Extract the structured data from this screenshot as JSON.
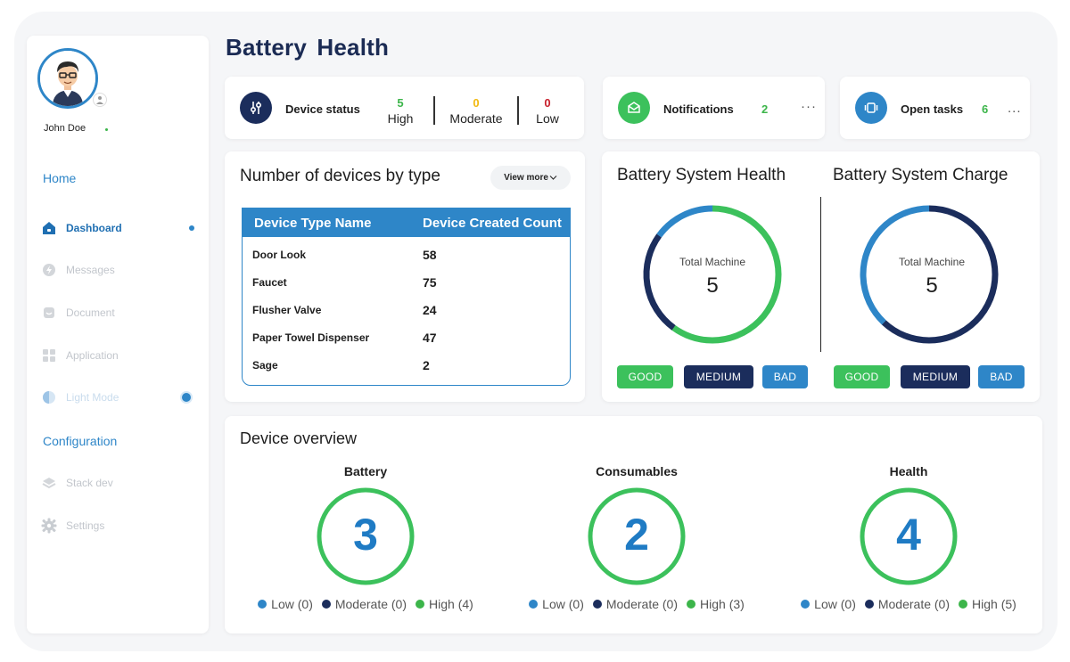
{
  "page": {
    "title": "Battery  Health"
  },
  "user": {
    "name": "John Doe"
  },
  "sidebar": {
    "section_home": "Home",
    "items_top": [
      {
        "label": "Dashboard",
        "icon": "home-icon",
        "active": true
      },
      {
        "label": "Messages",
        "icon": "bolt-icon"
      },
      {
        "label": "Document",
        "icon": "document-icon"
      },
      {
        "label": "Application",
        "icon": "grid-icon"
      },
      {
        "label": "Light Mode",
        "icon": "half-moon-icon"
      }
    ],
    "section_config": "Configuration",
    "items_bottom": [
      {
        "label": "Stack dev",
        "icon": "layers-icon"
      },
      {
        "label": "Settings",
        "icon": "gear-icon"
      }
    ]
  },
  "device_status": {
    "label": "Device status",
    "high": {
      "value": "5",
      "label": "High",
      "color": "#3cb54a"
    },
    "moderate": {
      "value": "0",
      "label": "Moderate",
      "color": "#f2b90f"
    },
    "low": {
      "value": "0",
      "label": "Low",
      "color": "#c8202c"
    }
  },
  "notifications": {
    "label": "Notifications",
    "count": "2",
    "more": "···"
  },
  "open_tasks": {
    "label": "Open tasks",
    "count": "6",
    "more": "..."
  },
  "devices_by_type": {
    "title": "Number of devices by type",
    "view_more": "View more",
    "columns": [
      "Device Type Name",
      "Device Created Count"
    ],
    "rows": [
      {
        "name": "Door Look",
        "count": "58"
      },
      {
        "name": "Faucet",
        "count": "75"
      },
      {
        "name": "Flusher Valve",
        "count": "24"
      },
      {
        "name": "Paper Towel Dispenser",
        "count": "47"
      },
      {
        "name": "Sage",
        "count": "2"
      }
    ]
  },
  "battery_health": {
    "title": "Battery System Health",
    "center_label": "Total Machine",
    "center_value": "5",
    "segments": [
      {
        "name": "GOOD",
        "fraction": 0.6,
        "color": "#3cc15c"
      },
      {
        "name": "MEDIUM",
        "fraction": 0.25,
        "color": "#1b2d5c"
      },
      {
        "name": "BAD",
        "fraction": 0.15,
        "color": "#2e86c8"
      }
    ]
  },
  "battery_charge": {
    "title": "Battery System Charge",
    "center_label": "Total Machine",
    "center_value": "5",
    "segments": [
      {
        "name": "GOOD",
        "fraction": 0.0,
        "color": "#3cc15c"
      },
      {
        "name": "MEDIUM",
        "fraction": 0.62,
        "color": "#1b2d5c"
      },
      {
        "name": "BAD",
        "fraction": 0.38,
        "color": "#2e86c8"
      }
    ]
  },
  "legend_buttons": [
    {
      "label": "GOOD",
      "color": "#3cc15c"
    },
    {
      "label": "MEDIUM",
      "color": "#1b2d5c"
    },
    {
      "label": "BAD",
      "color": "#2e86c8"
    }
  ],
  "device_overview": {
    "title": "Device overview",
    "groups": [
      {
        "name": "Battery",
        "value": "3",
        "legend": [
          "Low (0)",
          "Moderate (0)",
          "High (4)"
        ]
      },
      {
        "name": "Consumables",
        "value": "2",
        "legend": [
          "Low (0)",
          "Moderate (0)",
          "High (3)"
        ]
      },
      {
        "name": "Health",
        "value": "4",
        "legend": [
          "Low (0)",
          "Moderate (0)",
          "High (5)"
        ]
      }
    ],
    "legend_colors": [
      "#2e86c8",
      "#1b2d5c",
      "#3cb54a"
    ],
    "ring_color": "#3cc15c"
  }
}
